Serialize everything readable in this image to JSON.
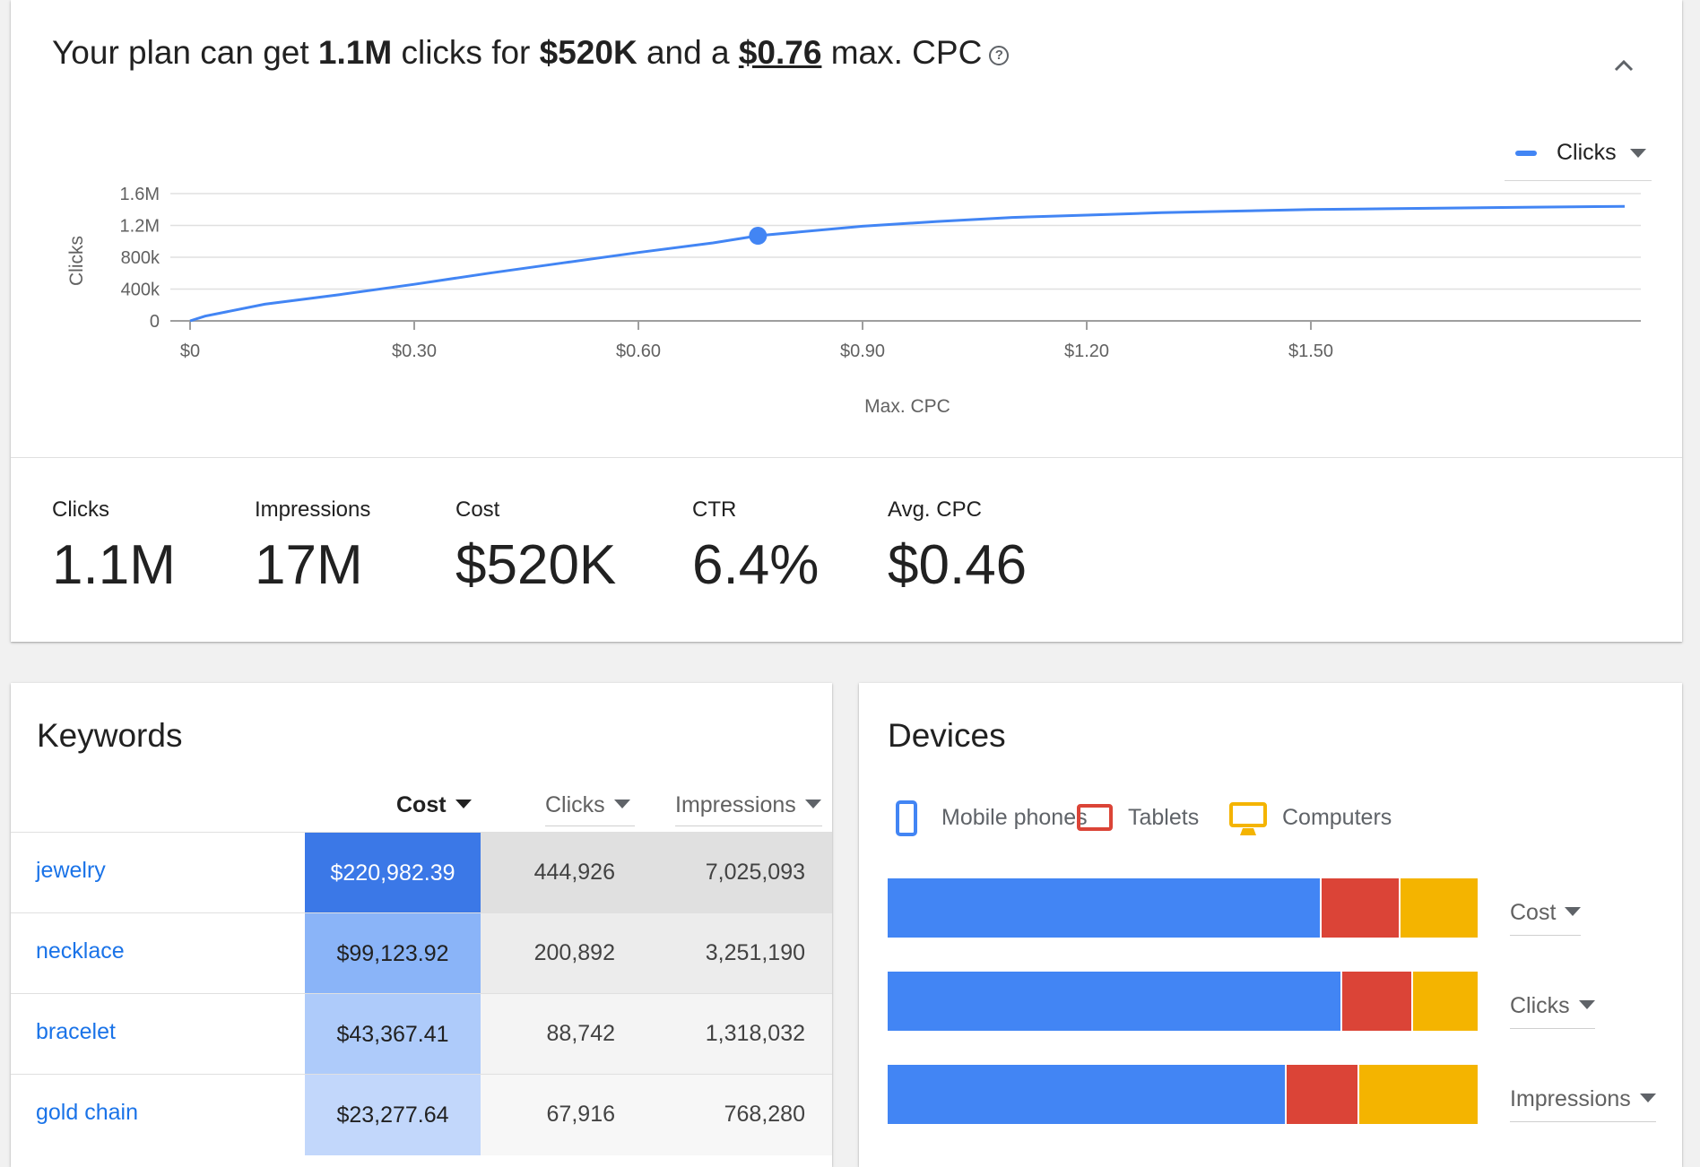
{
  "plan": {
    "headline_prefix": "Your plan can get ",
    "clicks": "1.1M",
    "mid1": " clicks for ",
    "cost": "$520K",
    "mid2": " and a ",
    "max_cpc": "$0.76",
    "suffix": " max. CPC",
    "help_icon": "help-circle-icon",
    "collapse_icon": "chevron-up-icon"
  },
  "chart_legend": {
    "label": "Clicks",
    "color": "#4285f4"
  },
  "chart_data": {
    "type": "line",
    "xlabel": "Max. CPC",
    "ylabel": "Clicks",
    "x_ticks": [
      "$0",
      "$0.30",
      "$0.60",
      "$0.90",
      "$1.20",
      "$1.50"
    ],
    "y_ticks": [
      "0",
      "400k",
      "800k",
      "1.2M",
      "1.6M"
    ],
    "xlim": [
      0,
      1.95
    ],
    "ylim": [
      0,
      1600000
    ],
    "series": [
      {
        "name": "Clicks",
        "x": [
          0,
          0.02,
          0.1,
          0.2,
          0.3,
          0.4,
          0.5,
          0.6,
          0.7,
          0.76,
          0.9,
          1.0,
          1.1,
          1.2,
          1.3,
          1.4,
          1.5,
          1.6,
          1.7,
          1.8,
          1.92
        ],
        "y": [
          0,
          60000,
          210000,
          330000,
          460000,
          600000,
          730000,
          860000,
          980000,
          1070000,
          1190000,
          1250000,
          1300000,
          1330000,
          1360000,
          1380000,
          1400000,
          1410000,
          1420000,
          1430000,
          1440000
        ]
      }
    ],
    "highlight": {
      "x": 0.76,
      "y": 1070000
    },
    "grid": true
  },
  "metrics": [
    {
      "label": "Clicks",
      "value": "1.1M"
    },
    {
      "label": "Impressions",
      "value": "17M"
    },
    {
      "label": "Cost",
      "value": "$520K"
    },
    {
      "label": "CTR",
      "value": "6.4%"
    },
    {
      "label": "Avg. CPC",
      "value": "$0.46"
    }
  ],
  "keywords": {
    "title": "Keywords",
    "columns": {
      "cost": "Cost",
      "clicks": "Clicks",
      "impressions": "Impressions"
    },
    "rows": [
      {
        "keyword": "jewelry",
        "cost": "$220,982.39",
        "clicks": "444,926",
        "impressions": "7,025,093",
        "cost_bg": "#3b78e7",
        "cost_fg": "#ffffff",
        "rest_bg": "#e0e0e0"
      },
      {
        "keyword": "necklace",
        "cost": "$99,123.92",
        "clicks": "200,892",
        "impressions": "3,251,190",
        "cost_bg": "#8ab4f8",
        "cost_fg": "#212121",
        "rest_bg": "#ececec"
      },
      {
        "keyword": "bracelet",
        "cost": "$43,367.41",
        "clicks": "88,742",
        "impressions": "1,318,032",
        "cost_bg": "#aecbfa",
        "cost_fg": "#212121",
        "rest_bg": "#f4f4f4"
      },
      {
        "keyword": "gold chain",
        "cost": "$23,277.64",
        "clicks": "67,916",
        "impressions": "768,280",
        "cost_bg": "#c2d7fb",
        "cost_fg": "#212121",
        "rest_bg": "#f7f7f7"
      }
    ]
  },
  "devices": {
    "title": "Devices",
    "legend": [
      {
        "label": "Mobile phones",
        "icon": "mobile-phone-icon",
        "color": "#4285f4"
      },
      {
        "label": "Tablets",
        "icon": "tablet-icon",
        "color": "#db4437"
      },
      {
        "label": "Computers",
        "icon": "computer-icon",
        "color": "#f4b400"
      }
    ],
    "bars": [
      {
        "metric": "Cost",
        "shares": [
          0.733,
          0.134,
          0.133
        ]
      },
      {
        "metric": "Clicks",
        "shares": [
          0.767,
          0.12,
          0.113
        ]
      },
      {
        "metric": "Impressions",
        "shares": [
          0.673,
          0.123,
          0.204
        ]
      }
    ]
  }
}
